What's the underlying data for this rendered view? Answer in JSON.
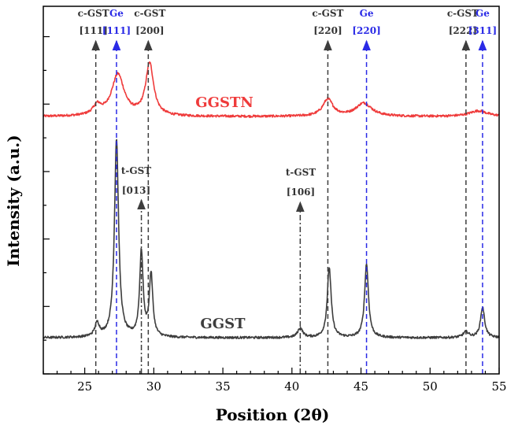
{
  "chart_data": {
    "type": "line",
    "xlabel": "Position (2θ)",
    "ylabel": "Intensity (a.u.)",
    "xlim": [
      22,
      55
    ],
    "x_ticks": [
      25,
      30,
      35,
      40,
      45,
      50,
      55
    ],
    "y_tick_labels": "none",
    "grid": false,
    "colors": {
      "GGSTN": "#ef3b3b",
      "GGST": "#3d3d3d",
      "ge_ref": "#2a2ae6",
      "gst_ref": "#3d3d3d"
    },
    "series": [
      {
        "name": "GGSTN",
        "color": "#ef3b3b",
        "baseline": 0.2,
        "noise": 0.06,
        "peaks": [
          {
            "x": 25.9,
            "height": 0.5,
            "width": 0.35
          },
          {
            "x": 27.4,
            "height": 2.2,
            "width": 0.55
          },
          {
            "x": 29.7,
            "height": 2.75,
            "width": 0.35
          },
          {
            "x": 42.6,
            "height": 0.9,
            "width": 0.45
          },
          {
            "x": 45.2,
            "height": 0.7,
            "width": 0.7
          },
          {
            "x": 53.5,
            "height": 0.3,
            "width": 0.8
          }
        ]
      },
      {
        "name": "GGST",
        "color": "#3d3d3d",
        "baseline": 0.12,
        "noise": 0.06,
        "peaks": [
          {
            "x": 25.9,
            "height": 0.7,
            "width": 0.2
          },
          {
            "x": 27.3,
            "height": 10.5,
            "width": 0.18
          },
          {
            "x": 29.1,
            "height": 4.5,
            "width": 0.15
          },
          {
            "x": 29.8,
            "height": 3.3,
            "width": 0.15
          },
          {
            "x": 40.6,
            "height": 0.5,
            "width": 0.22
          },
          {
            "x": 42.7,
            "height": 3.7,
            "width": 0.17
          },
          {
            "x": 45.4,
            "height": 3.9,
            "width": 0.17
          },
          {
            "x": 52.6,
            "height": 0.3,
            "width": 0.25
          },
          {
            "x": 53.8,
            "height": 1.6,
            "width": 0.18
          }
        ]
      }
    ],
    "annotations": [
      {
        "phase": "c-GST",
        "index": "[111]",
        "x": 25.8,
        "style": "dashed",
        "color": "#3d3d3d"
      },
      {
        "phase": "Ge",
        "index": "[111]",
        "x": 27.3,
        "style": "dashed",
        "color": "#2a2ae6"
      },
      {
        "phase": "c-GST",
        "index": "[200]",
        "x": 29.6,
        "style": "dashed",
        "color": "#3d3d3d"
      },
      {
        "phase": "c-GST",
        "index": "[220]",
        "x": 42.6,
        "style": "dashed",
        "color": "#3d3d3d"
      },
      {
        "phase": "Ge",
        "index": "[220]",
        "x": 45.4,
        "style": "dashed",
        "color": "#2a2ae6"
      },
      {
        "phase": "c-GST",
        "index": "[222]",
        "x": 52.6,
        "style": "dashed",
        "color": "#3d3d3d"
      },
      {
        "phase": "Ge",
        "index": "[311]",
        "x": 53.8,
        "style": "dashed",
        "color": "#2a2ae6"
      },
      {
        "phase": "t-GST",
        "index": "[013]",
        "x": 29.1,
        "style": "dashdot",
        "color": "#3d3d3d"
      },
      {
        "phase": "t-GST",
        "index": "[106]",
        "x": 40.6,
        "style": "dashdot",
        "color": "#3d3d3d"
      }
    ]
  }
}
